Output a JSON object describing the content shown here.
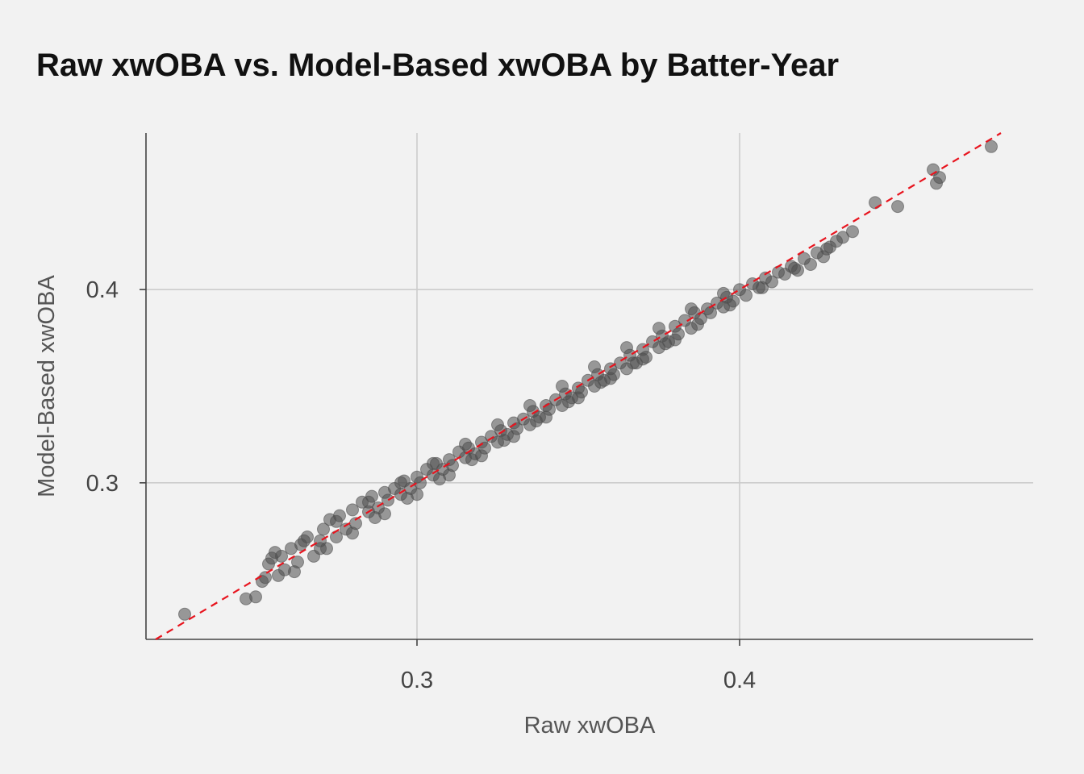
{
  "chart_data": {
    "type": "scatter",
    "title": "Raw xwOBA vs. Model-Based xwOBA by Batter-Year",
    "xlabel": "Raw xwOBA",
    "ylabel": "Model-Based xwOBA",
    "xlim": [
      0.216,
      0.491
    ],
    "ylim": [
      0.219,
      0.481
    ],
    "xticks": [
      0.3,
      0.4
    ],
    "yticks": [
      0.3,
      0.4
    ],
    "xtick_labels": [
      "0.3",
      "0.4"
    ],
    "ytick_labels": [
      "0.3",
      "0.4"
    ],
    "grid": true,
    "reference_line": {
      "slope": 1,
      "intercept": 0,
      "style": "dashed",
      "color": "#e8141e"
    },
    "point_color": "#4d4d4d",
    "point_opacity": 0.55,
    "series": [
      {
        "x": [
          0.228,
          0.247,
          0.25,
          0.252,
          0.253,
          0.254,
          0.255,
          0.256,
          0.257,
          0.259,
          0.261,
          0.263,
          0.264,
          0.266,
          0.268,
          0.27,
          0.271,
          0.272,
          0.273,
          0.275,
          0.276,
          0.278,
          0.28,
          0.281,
          0.283,
          0.285,
          0.286,
          0.288,
          0.29,
          0.291,
          0.293,
          0.295,
          0.296,
          0.298,
          0.3,
          0.301,
          0.303,
          0.305,
          0.306,
          0.308,
          0.31,
          0.311,
          0.313,
          0.315,
          0.316,
          0.318,
          0.32,
          0.321,
          0.323,
          0.325,
          0.326,
          0.328,
          0.33,
          0.331,
          0.333,
          0.335,
          0.336,
          0.338,
          0.34,
          0.341,
          0.343,
          0.345,
          0.346,
          0.348,
          0.35,
          0.351,
          0.353,
          0.355,
          0.356,
          0.358,
          0.36,
          0.361,
          0.363,
          0.365,
          0.366,
          0.368,
          0.37,
          0.371,
          0.373,
          0.375,
          0.376,
          0.378,
          0.38,
          0.381,
          0.383,
          0.385,
          0.386,
          0.388,
          0.39,
          0.391,
          0.393,
          0.395,
          0.396,
          0.398,
          0.4,
          0.402,
          0.404,
          0.406,
          0.408,
          0.41,
          0.412,
          0.414,
          0.416,
          0.418,
          0.42,
          0.422,
          0.424,
          0.426,
          0.428,
          0.43,
          0.432,
          0.442,
          0.449,
          0.46,
          0.461,
          0.462,
          0.478,
          0.265,
          0.275,
          0.285,
          0.295,
          0.305,
          0.315,
          0.325,
          0.335,
          0.345,
          0.355,
          0.365,
          0.375,
          0.385,
          0.395,
          0.29,
          0.3,
          0.31,
          0.32,
          0.33,
          0.34,
          0.35,
          0.36,
          0.37,
          0.38,
          0.258,
          0.262,
          0.27,
          0.28,
          0.287,
          0.297,
          0.307,
          0.317,
          0.327,
          0.337,
          0.347,
          0.357,
          0.367,
          0.377,
          0.387,
          0.397,
          0.407,
          0.417,
          0.427,
          0.435
        ],
        "y": [
          0.232,
          0.24,
          0.241,
          0.249,
          0.251,
          0.258,
          0.261,
          0.264,
          0.252,
          0.255,
          0.266,
          0.259,
          0.268,
          0.272,
          0.262,
          0.27,
          0.276,
          0.266,
          0.281,
          0.272,
          0.283,
          0.276,
          0.286,
          0.279,
          0.29,
          0.285,
          0.293,
          0.287,
          0.295,
          0.291,
          0.297,
          0.294,
          0.301,
          0.297,
          0.303,
          0.3,
          0.307,
          0.304,
          0.31,
          0.307,
          0.312,
          0.309,
          0.316,
          0.313,
          0.318,
          0.315,
          0.321,
          0.318,
          0.324,
          0.321,
          0.327,
          0.325,
          0.331,
          0.328,
          0.333,
          0.33,
          0.337,
          0.334,
          0.34,
          0.338,
          0.343,
          0.34,
          0.346,
          0.344,
          0.349,
          0.347,
          0.353,
          0.35,
          0.356,
          0.353,
          0.359,
          0.356,
          0.362,
          0.359,
          0.366,
          0.362,
          0.369,
          0.365,
          0.373,
          0.37,
          0.376,
          0.373,
          0.381,
          0.377,
          0.384,
          0.38,
          0.388,
          0.385,
          0.39,
          0.388,
          0.393,
          0.391,
          0.396,
          0.394,
          0.4,
          0.397,
          0.403,
          0.401,
          0.406,
          0.404,
          0.409,
          0.408,
          0.412,
          0.41,
          0.416,
          0.413,
          0.419,
          0.417,
          0.422,
          0.425,
          0.427,
          0.445,
          0.443,
          0.462,
          0.455,
          0.458,
          0.474,
          0.27,
          0.28,
          0.29,
          0.3,
          0.31,
          0.32,
          0.33,
          0.34,
          0.35,
          0.36,
          0.37,
          0.38,
          0.39,
          0.398,
          0.284,
          0.294,
          0.304,
          0.314,
          0.324,
          0.334,
          0.344,
          0.354,
          0.364,
          0.374,
          0.262,
          0.254,
          0.266,
          0.274,
          0.282,
          0.292,
          0.302,
          0.312,
          0.322,
          0.332,
          0.342,
          0.352,
          0.362,
          0.372,
          0.382,
          0.392,
          0.401,
          0.411,
          0.421,
          0.43
        ]
      }
    ]
  }
}
